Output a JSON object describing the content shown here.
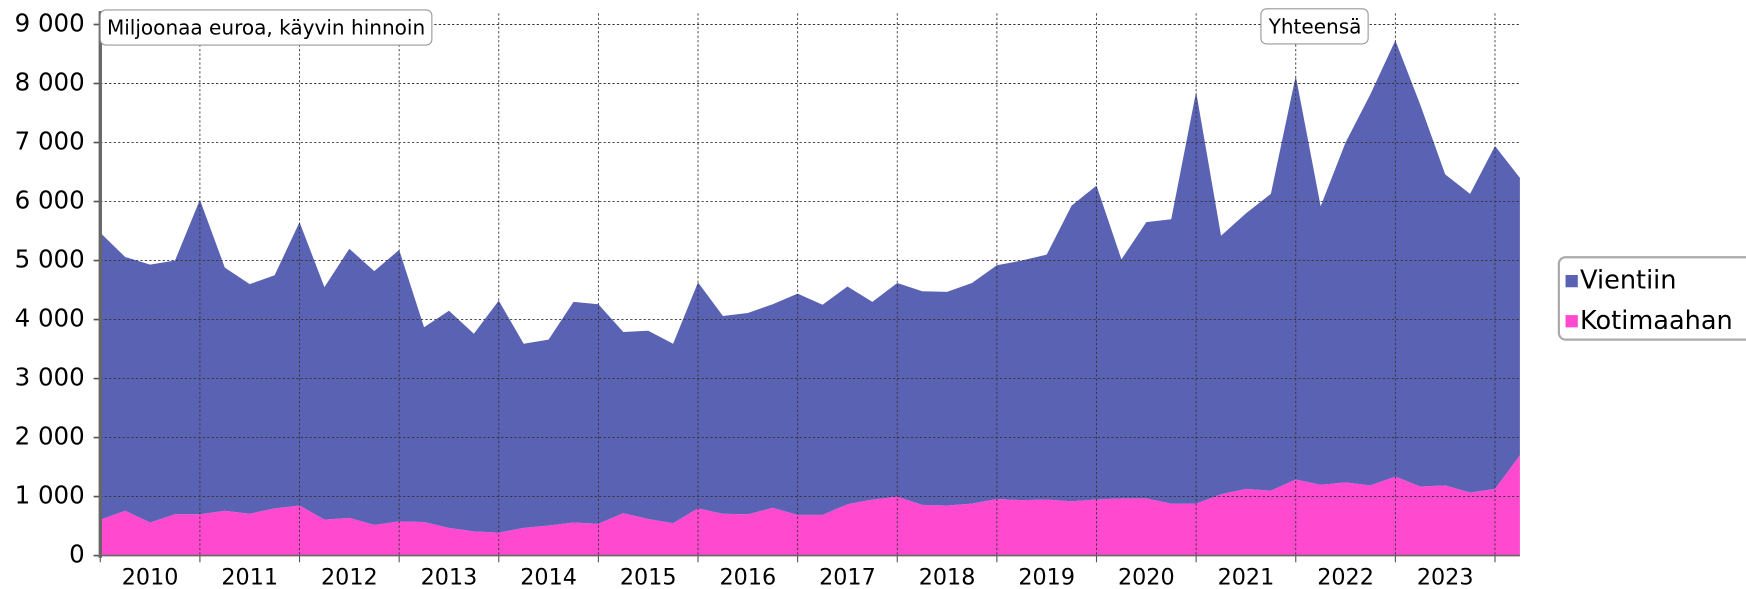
{
  "chart_data": {
    "type": "area",
    "stacked": true,
    "annotations": [
      "Miljoonaa euroa, käyvin hinnoin",
      "Yhteensä"
    ],
    "categories": [
      null,
      null,
      "2010",
      null,
      null,
      null,
      "2011",
      null,
      null,
      null,
      "2012",
      null,
      null,
      null,
      "2013",
      null,
      null,
      null,
      "2014",
      null,
      null,
      null,
      "2015",
      null,
      null,
      null,
      "2016",
      null,
      null,
      null,
      "2017",
      null,
      null,
      null,
      "2018",
      null,
      null,
      null,
      "2019",
      null,
      null,
      null,
      "2020",
      null,
      null,
      null,
      "2021",
      null,
      null,
      null,
      "2022",
      null,
      null,
      null,
      "2023",
      null,
      null,
      null
    ],
    "series": [
      {
        "name": "Vientiin",
        "color": "#5a62b4",
        "values": [
          4860,
          4300,
          4370,
          4300,
          5330,
          4120,
          3890,
          3950,
          4800,
          3940,
          4560,
          4300,
          4600,
          3300,
          3680,
          3350,
          3930,
          3120,
          3150,
          3740,
          3720,
          3070,
          3190,
          3040,
          3830,
          3350,
          3410,
          3450,
          3750,
          3560,
          3690,
          3350,
          3620,
          3620,
          3620,
          3740,
          3960,
          4060,
          4150,
          5010,
          5320,
          4050,
          4680,
          4820,
          6980,
          4380,
          4670,
          5030,
          6840,
          4720,
          5760,
          6630,
          7390,
          6470,
          5270,
          5060,
          5810,
          4700
        ]
      },
      {
        "name": "Kotimaahan",
        "color": "#ff4ad0",
        "values": [
          610,
          760,
          560,
          700,
          700,
          760,
          710,
          800,
          850,
          610,
          640,
          520,
          580,
          570,
          470,
          410,
          390,
          470,
          510,
          560,
          540,
          720,
          620,
          550,
          800,
          710,
          700,
          810,
          690,
          690,
          870,
          950,
          1000,
          860,
          850,
          880,
          960,
          940,
          950,
          920,
          950,
          970,
          970,
          880,
          880,
          1040,
          1130,
          1100,
          1290,
          1200,
          1240,
          1190,
          1340,
          1170,
          1190,
          1070,
          1130,
          1700
        ]
      }
    ],
    "ylim": [
      0,
      9000
    ],
    "yticks": [
      0,
      {
        "value": 1000,
        "label": "1 000"
      },
      {
        "value": 2000,
        "label": "2 000"
      },
      {
        "value": 3000,
        "label": "3 000"
      },
      {
        "value": 4000,
        "label": "4 000"
      },
      {
        "value": 5000,
        "label": "5 000"
      },
      {
        "value": 6000,
        "label": "6 000"
      },
      {
        "value": 7000,
        "label": "7 000"
      },
      {
        "value": 8000,
        "label": "8 000"
      },
      {
        "value": 9000,
        "label": "9 000"
      }
    ],
    "grid": true,
    "legend": "right"
  }
}
